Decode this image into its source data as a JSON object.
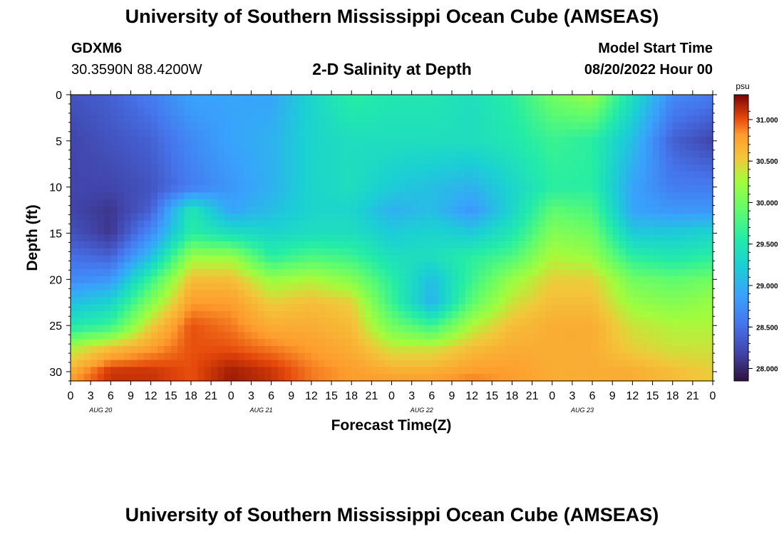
{
  "header": {
    "title": "University of Southern Mississippi Ocean Cube (AMSEAS)",
    "station": "GDXM6",
    "coords": "30.3590N  88.4200W",
    "plot_title": "2-D Salinity at Depth",
    "model_start_label": "Model Start Time",
    "model_start_value": "08/20/2022 Hour 00"
  },
  "footer": {
    "title": "University of Southern Mississippi Ocean Cube (AMSEAS)"
  },
  "chart_data": {
    "type": "heatmap",
    "title": "2-D Salinity at Depth",
    "xlabel": "Forecast Time(Z)",
    "ylabel": "Depth (ft)",
    "x_tick_labels": [
      "0",
      "3",
      "6",
      "9",
      "12",
      "15",
      "18",
      "21",
      "0",
      "3",
      "6",
      "9",
      "12",
      "15",
      "18",
      "21",
      "0",
      "3",
      "6",
      "9",
      "12",
      "15",
      "18",
      "21",
      "0",
      "3",
      "6",
      "9",
      "12",
      "15",
      "18",
      "21",
      "0"
    ],
    "day_labels": [
      "AUG 20",
      "AUG 21",
      "AUG 22",
      "AUG 23"
    ],
    "y_ticks": [
      0,
      5,
      10,
      15,
      20,
      25,
      30
    ],
    "ylim": [
      0,
      31
    ],
    "xlim_hours": [
      0,
      96
    ],
    "colorbar": {
      "unit": "psu",
      "range": [
        27.85,
        31.3
      ],
      "tick_values": [
        28.0,
        28.5,
        29.0,
        29.5,
        30.0,
        30.5,
        31.0
      ],
      "tick_labels": [
        "28.000",
        "28.500",
        "29.000",
        "29.500",
        "30.000",
        "30.500",
        "31.000"
      ]
    },
    "grid_hours": [
      0,
      6,
      12,
      18,
      24,
      30,
      36,
      42,
      48,
      54,
      60,
      66,
      72,
      78,
      84,
      90,
      96
    ],
    "grid_depths": [
      0,
      5,
      10,
      12.5,
      15,
      17.5,
      20,
      22.5,
      25,
      27.5,
      30,
      31
    ],
    "values": [
      [
        28.3,
        28.4,
        28.6,
        28.9,
        28.9,
        28.9,
        29.3,
        29.6,
        29.5,
        29.5,
        29.4,
        29.6,
        30.0,
        30.2,
        29.4,
        28.7,
        28.6
      ],
      [
        28.2,
        28.3,
        28.4,
        28.7,
        28.9,
        29.0,
        29.3,
        29.4,
        29.4,
        29.4,
        29.4,
        29.5,
        29.7,
        29.6,
        29.1,
        28.4,
        28.2
      ],
      [
        28.2,
        28.2,
        28.3,
        28.6,
        28.8,
        29.0,
        29.3,
        29.4,
        29.2,
        29.1,
        29.0,
        29.3,
        29.6,
        29.6,
        28.9,
        28.6,
        28.6
      ],
      [
        28.2,
        28.1,
        28.4,
        29.5,
        28.9,
        29.1,
        29.3,
        29.3,
        29.0,
        29.1,
        28.8,
        29.3,
        29.9,
        29.8,
        28.9,
        28.8,
        28.8
      ],
      [
        28.3,
        28.1,
        28.7,
        29.6,
        29.4,
        29.3,
        29.4,
        29.4,
        29.2,
        29.3,
        29.2,
        29.5,
        30.1,
        30.0,
        29.2,
        29.2,
        29.3
      ],
      [
        28.5,
        28.4,
        29.1,
        30.2,
        30.2,
        29.6,
        29.8,
        29.7,
        29.4,
        29.4,
        29.6,
        29.8,
        30.3,
        30.2,
        29.6,
        29.5,
        29.6
      ],
      [
        28.7,
        28.8,
        29.7,
        30.6,
        30.6,
        30.2,
        30.3,
        30.1,
        29.6,
        29.1,
        29.7,
        30.2,
        30.5,
        30.5,
        30.0,
        29.9,
        30.0
      ],
      [
        29.1,
        29.3,
        30.1,
        30.8,
        30.8,
        30.5,
        30.6,
        30.5,
        29.7,
        29.0,
        29.9,
        30.4,
        30.6,
        30.6,
        30.2,
        30.1,
        30.2
      ],
      [
        29.5,
        29.7,
        30.5,
        31.0,
        30.9,
        30.7,
        30.7,
        30.6,
        30.0,
        29.7,
        30.3,
        30.6,
        30.7,
        30.7,
        30.4,
        30.3,
        30.3
      ],
      [
        30.3,
        30.6,
        30.8,
        31.0,
        31.0,
        30.9,
        30.8,
        30.7,
        30.4,
        30.4,
        30.6,
        30.7,
        30.7,
        30.7,
        30.5,
        30.4,
        30.4
      ],
      [
        30.7,
        31.1,
        31.1,
        31.0,
        31.2,
        31.1,
        30.9,
        30.8,
        30.7,
        30.7,
        30.8,
        30.8,
        30.7,
        30.7,
        30.7,
        30.6,
        30.5
      ],
      [
        30.8,
        31.1,
        31.1,
        31.0,
        31.2,
        31.1,
        30.9,
        30.8,
        30.8,
        30.8,
        30.9,
        30.8,
        30.7,
        30.7,
        30.7,
        30.6,
        30.5
      ]
    ]
  }
}
